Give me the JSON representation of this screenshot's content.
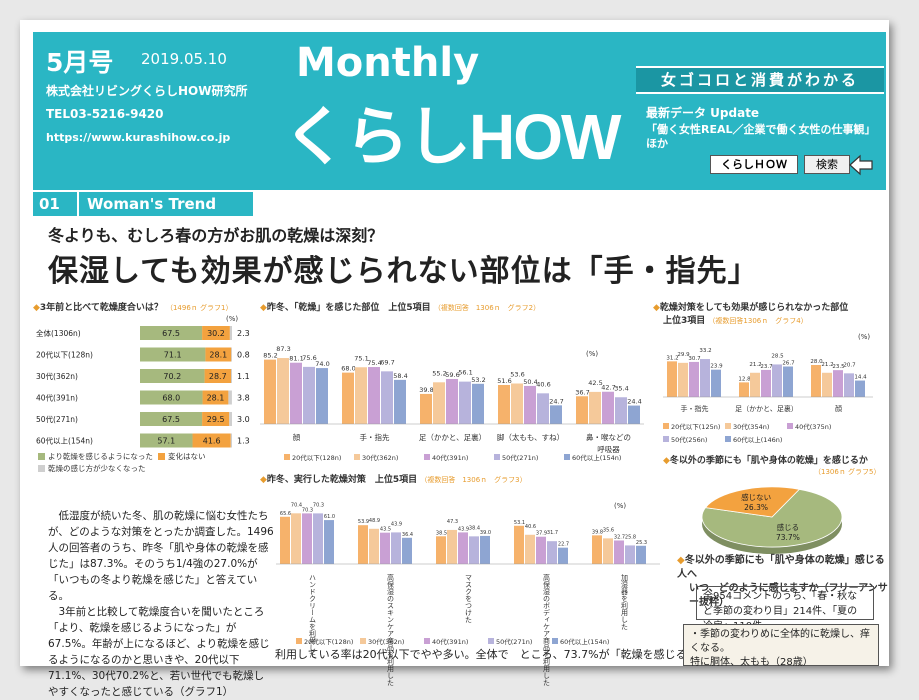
{
  "header": {
    "issue": "5月号",
    "date": "2019.05.10",
    "company": "株式会社リビングくらしHOW研究所",
    "tel": "TEL03-5216-9420",
    "url": "https://www.kurashihow.co.jp",
    "monthly": "Monthly",
    "logo": "くらしHOW",
    "tagline": "女ゴコロと消費がわかる",
    "update_title": "最新データ Update",
    "update_line1": "「働く女性REAL／企業で働く女性の仕事観」",
    "update_line2": "ほか",
    "search_value": "くらしＨＯＷ",
    "search_button": "検索"
  },
  "section": {
    "num": "01",
    "label": "Woman's Trend"
  },
  "headline": {
    "sub": "冬よりも、むしろ春の方がお肌の乾燥は深刻？",
    "main": "保湿しても効果が感じられない部位は「手・指先」"
  },
  "colors": {
    "teal": "#2ab6c4",
    "green": "#a6b97e",
    "orange": "#f3a23f",
    "c20": "#f6b26b",
    "c30": "#f5c99a",
    "c40": "#c9a0d4",
    "c50": "#b7b3dc",
    "c60": "#8ea5d2"
  },
  "chart_data": [
    {
      "type": "bar",
      "stacked": true,
      "orientation": "horizontal",
      "title": "3年前と比べて乾燥度合いは？",
      "note": "（1496ｎ グラフ1）",
      "unit": "(%)",
      "categories": [
        "全体(1306n)",
        "20代以下(128n)",
        "30代(362n)",
        "40代(391n)",
        "50代(271n)",
        "60代以上(154n)"
      ],
      "series": [
        {
          "name": "より乾燥を感じるようになった",
          "values": [
            67.5,
            71.1,
            70.2,
            68.0,
            67.5,
            57.1
          ]
        },
        {
          "name": "変化はない",
          "values": [
            30.2,
            28.1,
            28.7,
            28.1,
            29.5,
            41.6
          ]
        },
        {
          "name": "乾燥の感じ方が少なくなった",
          "values": [
            2.3,
            0.8,
            1.1,
            3.8,
            3.0,
            1.3
          ]
        }
      ]
    },
    {
      "type": "bar",
      "title": "昨冬、「乾燥」を感じた部位　上位5項目",
      "note": "（複数回答　1306ｎ　グラフ2）",
      "unit": "(%)",
      "categories": [
        "顔",
        "手・指先",
        "足（かかと、足裏）",
        "脚（太もも、すね）",
        "鼻・喉などの呼吸器"
      ],
      "series": [
        {
          "name": "20代以下(128n)",
          "values": [
            85.2,
            68.0,
            39.8,
            51.6,
            36.7
          ]
        },
        {
          "name": "30代(362n)",
          "values": [
            87.3,
            75.1,
            55.2,
            53.6,
            42.5
          ]
        },
        {
          "name": "40代(391n)",
          "values": [
            81.1,
            75.4,
            59.6,
            50.4,
            42.7
          ]
        },
        {
          "name": "50代(271n)",
          "values": [
            75.6,
            69.7,
            56.1,
            40.6,
            35.4
          ]
        },
        {
          "name": "60代以上(154n)",
          "values": [
            74.0,
            58.4,
            53.2,
            24.7,
            24.4
          ]
        }
      ]
    },
    {
      "type": "bar",
      "title": "乾燥対策をしても効果が感じられなかった部位",
      "title2": "上位3項目",
      "note": "（複数回答1306ｎ　グラフ4）",
      "unit": "(%)",
      "categories": [
        "手・指先",
        "足（かかと、足裏）",
        "顔"
      ],
      "series": [
        {
          "name": "20代以下(125n)",
          "values": [
            31.2,
            12.8,
            28.0
          ]
        },
        {
          "name": "30代(354n)",
          "values": [
            29.9,
            21.2,
            21.2
          ]
        },
        {
          "name": "40代(375n)",
          "values": [
            30.7,
            23.7,
            23.5
          ]
        },
        {
          "name": "50代(256n)",
          "values": [
            33.2,
            28.5,
            20.7
          ]
        },
        {
          "name": "60代以上(146n)",
          "values": [
            23.9,
            26.7,
            14.4
          ]
        }
      ]
    },
    {
      "type": "pie",
      "title": "冬以外の季節にも「肌や身体の乾燥」を感じるか",
      "note": "（1306ｎ グラフ5）",
      "slices": [
        {
          "name": "感じる",
          "value": 73.7
        },
        {
          "name": "感じない",
          "value": 26.3
        }
      ]
    },
    {
      "type": "bar",
      "title": "昨冬、実行した乾燥対策　上位5項目",
      "note": "（複数回答　1306ｎ　グラフ3）",
      "unit": "(%)",
      "categories": [
        "ハンドクリームを利用した",
        "高保湿のスキンケア商品を利用した",
        "マスクをつけた",
        "高保湿のボディケア商品を利用した",
        "加湿器を利用した"
      ],
      "series": [
        {
          "name": "20代以下(128n)",
          "values": [
            65.6,
            53.9,
            38.5,
            53.1,
            39.8
          ]
        },
        {
          "name": "30代(362n)",
          "values": [
            70.4,
            48.9,
            47.3,
            40.6,
            35.6
          ]
        },
        {
          "name": "40代(391n)",
          "values": [
            70.3,
            43.5,
            43.9,
            37.9,
            32.7
          ]
        },
        {
          "name": "50代(271n)",
          "values": [
            70.3,
            43.9,
            38.4,
            31.7,
            25.8
          ]
        },
        {
          "name": "60代以上(154n)",
          "values": [
            61.0,
            36.4,
            39.0,
            22.7,
            25.3
          ]
        }
      ]
    }
  ],
  "body_text": {
    "p1": "低湿度が続いた冬、肌の乾燥に悩む女性たちが、どのような対策をとったか調査した。1496人の回答者のうち、昨冬「肌や身体の乾燥を感じた」は87.3%。そのうち1/4強の27.0%が「いつもの冬より乾燥を感じた」と答えている。",
    "p2": "3年前と比較して乾燥度合いを聞いたところ「より、乾燥を感じるようになった」が67.5%。年齢が上になるほど、より乾燥を感じるようになるのかと思いきや、20代以下71.1%、30代70.2%と、若い世代でも乾燥しやすくなったと感じている（グラフ1）",
    "bottom": "利用している率は20代以下でやや多い。全体で　ところ、73.7%が「乾燥を感じる」と回答（グラフ"
  },
  "free_answer": {
    "title1": "冬以外の季節にも「肌や身体の乾燥」感じる人へ",
    "title2": "いつ、どのように感じますか（フリーアンサー抜粋）",
    "box1": "全954コメントのうち、「春・秋など季節の変わり目」214件、「夏の冷房」110件",
    "box2_line1": "・季節の変わりめに全体的に乾燥し、痒くなる。",
    "box2_line2": "特に胴体、太もも（28歳）"
  }
}
